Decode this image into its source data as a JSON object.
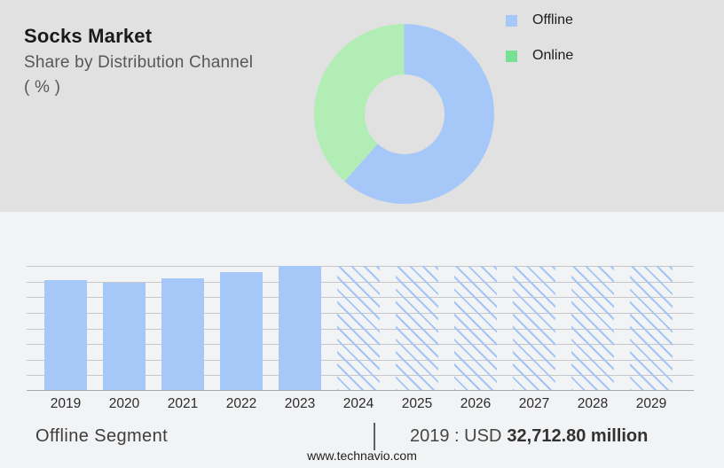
{
  "header": {
    "title": "Socks Market",
    "subtitle_line1": "Share by Distribution Channel",
    "subtitle_line2": "( % )"
  },
  "legend": {
    "items": [
      {
        "label": "Offline",
        "color": "#a6c8f8"
      },
      {
        "label": "Online",
        "color": "#76e195"
      }
    ]
  },
  "colors": {
    "top_band_bg": "#e1e1e2",
    "bottom_bg": "#f2f3f5",
    "bar_blue": "#a6c8f8",
    "donut_blue": "#a6c8f8",
    "donut_green": "#b2edb5",
    "legend_green": "#76e195",
    "gridline": "#c7c7cb"
  },
  "chart_data": [
    {
      "type": "pie",
      "subtype": "donut",
      "title": "Socks Market - Share by Distribution Channel ( % )",
      "labels": [
        "Offline",
        "Online"
      ],
      "values": [
        61.5,
        38.5
      ],
      "colors": [
        "#a6c8f8",
        "#b2edb5"
      ],
      "start_angle_deg": 0,
      "direction": "clockwise",
      "inner_radius_pct": 44,
      "legend_position": "right"
    },
    {
      "type": "bar",
      "categories": [
        "2019",
        "2020",
        "2021",
        "2022",
        "2023",
        "2024",
        "2025",
        "2026",
        "2027",
        "2028",
        "2029"
      ],
      "values_pct_of_plot_height": [
        88.7,
        86.5,
        90.1,
        95,
        100,
        100,
        100,
        100,
        100,
        100,
        100
      ],
      "known_values": {
        "2019": "USD 32,712.80 million"
      },
      "actual_years": [
        "2019",
        "2020",
        "2021",
        "2022",
        "2023"
      ],
      "forecast_years": [
        "2024",
        "2025",
        "2026",
        "2027",
        "2028",
        "2029"
      ],
      "forecast_style": "hatched-diagonal",
      "xlabel": "",
      "ylabel": "",
      "y_axis_labels_visible": false,
      "gridlines": 9,
      "grid": true,
      "legend_position": "none"
    }
  ],
  "footer": {
    "segment_label": "Offline Segment",
    "separator": "|",
    "value_text": "2019 : USD",
    "value_bold": "32,712.80 million",
    "website": "www.technavio.com"
  }
}
